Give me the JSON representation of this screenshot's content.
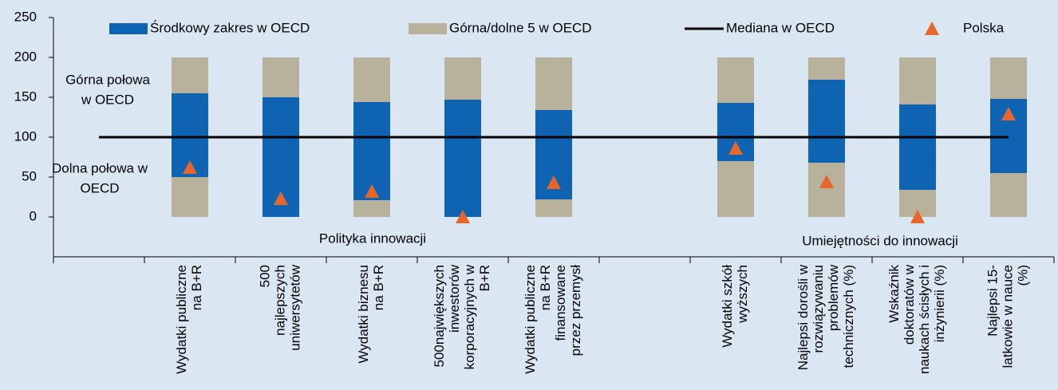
{
  "chart_data": {
    "type": "range_bar",
    "categories": [
      null,
      [
        "Wydatki publiczne",
        "na B+R"
      ],
      [
        "500",
        "najlepszych",
        "uniwersytetów"
      ],
      [
        "Wydatki biznesu",
        "na B+R"
      ],
      [
        "500największych",
        "inwestorów",
        "korporacyjnych w",
        "B+R"
      ],
      [
        "Wydatki publiczne",
        "na B+R",
        "finansowane",
        "przez przemysł"
      ],
      null,
      [
        "Wydatki szkół",
        "wyższych"
      ],
      [
        "Najlepsi dorośli w",
        "rozwiązywaniu",
        "problemów",
        "technicznych (%)"
      ],
      [
        "Wskaźnik",
        "doktoratów w",
        "naukach ścisłych i",
        "inżynierii (%)"
      ],
      [
        "Najlepsi 15-",
        "latkowie w nauce",
        "(%)"
      ]
    ],
    "series": [
      {
        "name": "Środkowy zakres w OECD",
        "color": "#0f63b3",
        "values": [
          null,
          105,
          150,
          123,
          147,
          112,
          null,
          73,
          104,
          107,
          93
        ]
      },
      {
        "name": "Górna/dolne 5 w OECD",
        "color": "#b8b29c",
        "values": [
          null,
          50,
          0,
          21,
          0,
          22,
          null,
          70,
          68,
          34,
          55
        ],
        "upper_values": [
          null,
          45,
          50,
          56,
          53,
          66,
          null,
          57,
          28,
          59,
          52
        ]
      },
      {
        "name": "Mediana w OECD",
        "color": "#000000",
        "values": [
          100,
          100,
          100,
          100,
          100,
          100,
          100,
          100,
          100,
          100,
          100
        ]
      },
      {
        "name": "Polska",
        "color": "#e8662b",
        "values": [
          null,
          62,
          23,
          32,
          0,
          43,
          null,
          86,
          44,
          0,
          129
        ]
      }
    ],
    "annotations": [
      {
        "lines": [
          "Górna połowa",
          "w OECD"
        ]
      },
      {
        "lines": [
          "Dolna połowa w",
          "OECD"
        ]
      },
      {
        "lines": [
          "Polityka innowacji"
        ]
      },
      {
        "lines": [
          "Umiejętności do innowacji"
        ]
      }
    ],
    "ylim": [
      -50,
      250
    ],
    "yticks": [
      0,
      50,
      100,
      150,
      200,
      250
    ]
  }
}
